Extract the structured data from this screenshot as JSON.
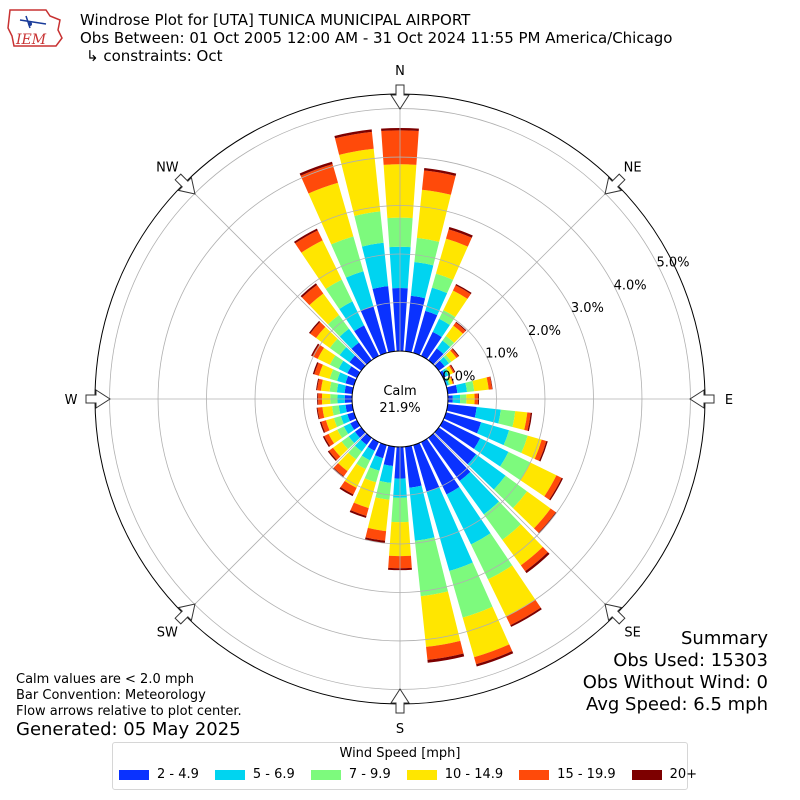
{
  "logo": {
    "text": "IEM"
  },
  "title": {
    "line1": "Windrose Plot for [UTA] TUNICA MUNICIPAL AIRPORT",
    "line2": "Obs Between: 01 Oct 2005 12:00 AM - 31 Oct 2024 11:55 PM America/Chicago",
    "line3": "↳ constraints: Oct"
  },
  "calm": {
    "label": "Calm",
    "value": "21.9%"
  },
  "notes": {
    "line1": "Calm values are < 2.0 mph",
    "line2": "Bar Convention: Meteorology",
    "line3": "Flow arrows relative to plot center.",
    "generated": "Generated: 05 May 2025"
  },
  "summary": {
    "heading": "Summary",
    "obs_used": "Obs Used: 15303",
    "obs_without_wind": "Obs Without Wind: 0",
    "avg_speed": "Avg Speed: 6.5 mph"
  },
  "legend": {
    "title": "Wind Speed [mph]"
  },
  "chart_data": {
    "type": "windrose",
    "compass_labels": [
      "N",
      "NE",
      "E",
      "SE",
      "S",
      "SW",
      "W",
      "NW"
    ],
    "radial_ticks": [
      "0.0%",
      "1.0%",
      "2.0%",
      "3.0%",
      "4.0%",
      "5.0%"
    ],
    "radial_max": 5.3,
    "speed_bins": [
      {
        "label": "2 - 4.9",
        "color": "#0a32ff"
      },
      {
        "label": "5 - 6.9",
        "color": "#00d4f0"
      },
      {
        "label": "7 - 9.9",
        "color": "#7dfa7d"
      },
      {
        "label": "10 - 14.9",
        "color": "#ffe600"
      },
      {
        "label": "15 - 19.9",
        "color": "#ff4a0a"
      },
      {
        "label": "20+",
        "color": "#7d0000"
      }
    ],
    "directions_deg": [
      0,
      10,
      20,
      30,
      40,
      50,
      60,
      70,
      80,
      90,
      100,
      110,
      120,
      130,
      140,
      150,
      160,
      170,
      180,
      190,
      200,
      210,
      220,
      230,
      240,
      250,
      260,
      270,
      280,
      290,
      300,
      310,
      320,
      330,
      340,
      350
    ],
    "cumulative_percent": [
      [
        1.3,
        2.15,
        2.75,
        3.85,
        4.55,
        4.6
      ],
      [
        1.15,
        1.85,
        2.35,
        3.35,
        3.75,
        3.8
      ],
      [
        0.9,
        1.4,
        1.7,
        2.45,
        2.65,
        2.7
      ],
      [
        0.55,
        0.85,
        1.05,
        1.5,
        1.62,
        1.65
      ],
      [
        0.3,
        0.5,
        0.62,
        0.88,
        0.96,
        0.98
      ],
      [
        0.15,
        0.26,
        0.32,
        0.45,
        0.5,
        0.52
      ],
      [
        0.06,
        0.12,
        0.16,
        0.23,
        0.26,
        0.28
      ],
      [
        0.02,
        0.06,
        0.09,
        0.14,
        0.16,
        0.17
      ],
      [
        0.2,
        0.4,
        0.55,
        0.85,
        0.92,
        0.93
      ],
      [
        0.1,
        0.25,
        0.38,
        0.55,
        0.62,
        0.64
      ],
      [
        0.6,
        1.1,
        1.4,
        1.65,
        1.72,
        1.75
      ],
      [
        0.75,
        1.35,
        1.75,
        2.05,
        2.15,
        2.18
      ],
      [
        0.85,
        1.5,
        2.0,
        2.6,
        2.72,
        2.75
      ],
      [
        0.95,
        1.7,
        2.25,
        2.85,
        2.98,
        3.0
      ],
      [
        1.1,
        1.95,
        2.6,
        3.25,
        3.4,
        3.45
      ],
      [
        1.2,
        2.35,
        3.15,
        4.0,
        4.2,
        4.24
      ],
      [
        1.0,
        2.7,
        3.7,
        4.55,
        4.7,
        4.75
      ],
      [
        0.85,
        1.95,
        3.1,
        4.15,
        4.42,
        4.48
      ],
      [
        0.65,
        1.05,
        1.55,
        2.25,
        2.5,
        2.54
      ],
      [
        0.4,
        0.75,
        1.1,
        1.75,
        1.95,
        2.0
      ],
      [
        0.28,
        0.55,
        0.8,
        1.35,
        1.52,
        1.56
      ],
      [
        0.2,
        0.42,
        0.62,
        1.05,
        1.2,
        1.24
      ],
      [
        0.18,
        0.35,
        0.55,
        0.85,
        0.98,
        1.01
      ],
      [
        0.16,
        0.32,
        0.5,
        0.72,
        0.82,
        0.85
      ],
      [
        0.15,
        0.3,
        0.45,
        0.65,
        0.75,
        0.78
      ],
      [
        0.14,
        0.28,
        0.43,
        0.6,
        0.7,
        0.73
      ],
      [
        0.14,
        0.28,
        0.42,
        0.62,
        0.72,
        0.74
      ],
      [
        0.15,
        0.3,
        0.45,
        0.62,
        0.7,
        0.72
      ],
      [
        0.16,
        0.32,
        0.47,
        0.65,
        0.73,
        0.75
      ],
      [
        0.18,
        0.36,
        0.52,
        0.75,
        0.85,
        0.88
      ],
      [
        0.22,
        0.42,
        0.62,
        0.9,
        1.02,
        1.05
      ],
      [
        0.3,
        0.55,
        0.8,
        1.15,
        1.3,
        1.33
      ],
      [
        0.45,
        0.8,
        1.15,
        1.7,
        1.92,
        1.96
      ],
      [
        0.7,
        1.25,
        1.75,
        2.65,
        2.88,
        2.92
      ],
      [
        1.0,
        1.75,
        2.5,
        3.65,
        4.05,
        4.1
      ],
      [
        1.35,
        2.25,
        2.9,
        4.2,
        4.55,
        4.6
      ]
    ]
  }
}
